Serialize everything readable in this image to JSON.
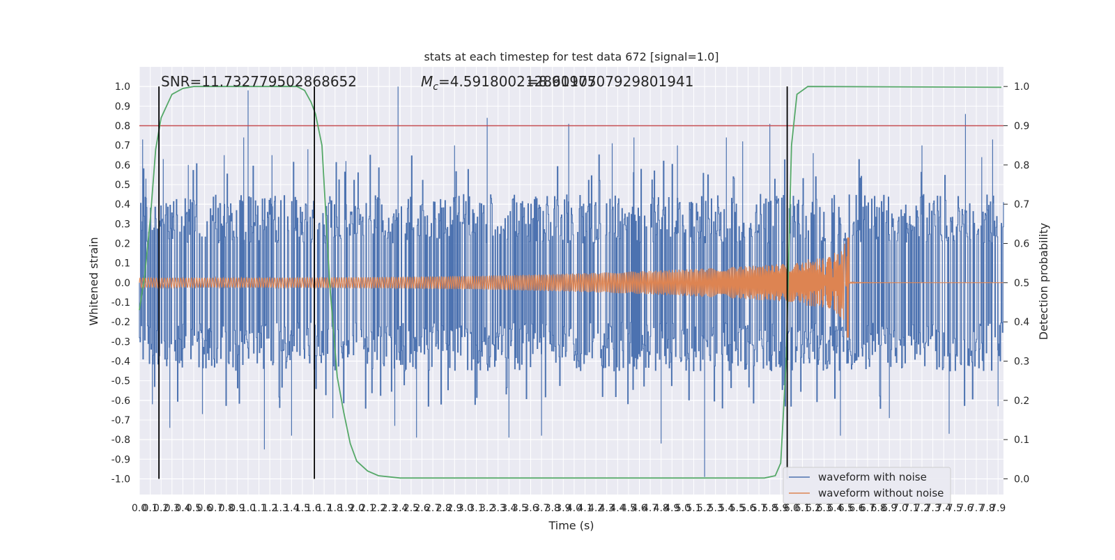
{
  "chart_data": {
    "type": "line",
    "title": "stats at each timestep for test data 672 [signal=1.0]",
    "xlabel": "Time (s)",
    "ylabel_left": "Whitened strain",
    "ylabel_right": "Detection probability",
    "xlim": [
      0.0,
      7.95
    ],
    "ylim_left": [
      -1.08,
      1.1
    ],
    "ylim_right": [
      -0.04,
      1.05
    ],
    "x_ticks": [
      "0.0",
      "0.1",
      "0.2",
      "0.3",
      "0.4",
      "0.5",
      "0.6",
      "0.7",
      "0.8",
      "0.9",
      "1.0",
      "1.1",
      "1.2",
      "1.3",
      "1.4",
      "1.5",
      "1.6",
      "1.7",
      "1.8",
      "1.9",
      "2.0",
      "2.1",
      "2.2",
      "2.3",
      "2.4",
      "2.5",
      "2.6",
      "2.7",
      "2.8",
      "2.9",
      "3.0",
      "3.1",
      "3.2",
      "3.3",
      "3.4",
      "3.5",
      "3.6",
      "3.7",
      "3.8",
      "3.9",
      "4.0",
      "4.1",
      "4.2",
      "4.3",
      "4.4",
      "4.5",
      "4.6",
      "4.7",
      "4.8",
      "4.9",
      "5.0",
      "5.1",
      "5.2",
      "5.3",
      "5.4",
      "5.5",
      "5.6",
      "5.7",
      "5.8",
      "5.9",
      "6.0",
      "6.1",
      "6.2",
      "6.3",
      "6.4",
      "6.5",
      "6.6",
      "6.7",
      "6.8",
      "6.9",
      "7.0",
      "7.1",
      "7.2",
      "7.3",
      "7.4",
      "7.5",
      "7.6",
      "7.7",
      "7.8",
      "7.9"
    ],
    "y_ticks_left": [
      "-1.0",
      "-0.9",
      "-0.8",
      "-0.7",
      "-0.6",
      "-0.5",
      "-0.4",
      "-0.3",
      "-0.2",
      "-0.1",
      "0.0",
      "0.1",
      "0.2",
      "0.3",
      "0.4",
      "0.5",
      "0.6",
      "0.7",
      "0.8",
      "0.9",
      "1.0"
    ],
    "y_ticks_right": [
      "0.0",
      "0.1",
      "0.2",
      "0.3",
      "0.4",
      "0.5",
      "0.6",
      "0.7",
      "0.8",
      "0.9",
      "1.0"
    ],
    "annotations": {
      "snr": "SNR=11.732779502868652",
      "mc_symbol": "M",
      "mc_sub": "c",
      "mc_value": "=4.591800212860107",
      "overlap": "=8.9197507929801941"
    },
    "threshold_line": {
      "y_right": 0.9,
      "color": "#c44e52"
    },
    "vertical_lines_x": [
      0.18,
      1.61,
      5.96
    ],
    "series": [
      {
        "name": "waveform with noise",
        "color": "#4c72b0",
        "envelope_typical": 0.45,
        "peak_points": [
          [
            0.03,
            0.73
          ],
          [
            0.06,
            0.53
          ],
          [
            0.12,
            -0.62
          ],
          [
            0.22,
            0.63
          ],
          [
            0.28,
            -0.74
          ],
          [
            0.45,
            0.6
          ],
          [
            0.58,
            -0.67
          ],
          [
            0.78,
            0.65
          ],
          [
            0.96,
            0.74
          ],
          [
            1.0,
            0.98
          ],
          [
            1.15,
            -0.85
          ],
          [
            1.22,
            0.65
          ],
          [
            1.4,
            -0.78
          ],
          [
            1.55,
            0.68
          ],
          [
            1.78,
            -0.69
          ],
          [
            1.9,
            0.62
          ],
          [
            2.35,
            -0.73
          ],
          [
            2.38,
            1.0
          ],
          [
            2.55,
            -0.79
          ],
          [
            2.9,
            0.7
          ],
          [
            3.2,
            0.84
          ],
          [
            3.4,
            -0.79
          ],
          [
            3.7,
            -0.78
          ],
          [
            3.95,
            0.81
          ],
          [
            4.35,
            0.71
          ],
          [
            4.55,
            0.74
          ],
          [
            4.8,
            -0.82
          ],
          [
            4.95,
            0.7
          ],
          [
            5.2,
            -0.99
          ],
          [
            5.4,
            0.74
          ],
          [
            5.55,
            0.72
          ],
          [
            5.8,
            0.81
          ],
          [
            6.2,
            0.66
          ],
          [
            6.45,
            -0.78
          ],
          [
            6.9,
            -0.69
          ],
          [
            7.2,
            0.7
          ],
          [
            7.45,
            -0.77
          ],
          [
            7.6,
            0.86
          ],
          [
            7.75,
            0.64
          ],
          [
            7.85,
            0.73
          ],
          [
            7.9,
            -0.63
          ]
        ]
      },
      {
        "name": "waveform without noise",
        "color": "#dd8452",
        "merger_time": 6.53,
        "amplitude_start": 0.025,
        "amplitude_near_merger": 0.12,
        "amplitude_peak": 0.23,
        "amplitude_peak_negative": -0.28
      },
      {
        "name": "detection probability",
        "color": "#55a868",
        "axis": "right",
        "points": [
          [
            0.0,
            0.43
          ],
          [
            0.05,
            0.52
          ],
          [
            0.1,
            0.66
          ],
          [
            0.15,
            0.84
          ],
          [
            0.2,
            0.92
          ],
          [
            0.25,
            0.95
          ],
          [
            0.3,
            0.98
          ],
          [
            0.4,
            0.995
          ],
          [
            0.5,
            1.0
          ],
          [
            1.45,
            1.0
          ],
          [
            1.52,
            0.99
          ],
          [
            1.58,
            0.96
          ],
          [
            1.62,
            0.93
          ],
          [
            1.68,
            0.85
          ],
          [
            1.75,
            0.5
          ],
          [
            1.82,
            0.26
          ],
          [
            1.88,
            0.17
          ],
          [
            1.94,
            0.09
          ],
          [
            2.0,
            0.045
          ],
          [
            2.1,
            0.02
          ],
          [
            2.2,
            0.008
          ],
          [
            2.4,
            0.002
          ],
          [
            5.75,
            0.002
          ],
          [
            5.85,
            0.008
          ],
          [
            5.9,
            0.04
          ],
          [
            5.95,
            0.3
          ],
          [
            6.0,
            0.85
          ],
          [
            6.05,
            0.98
          ],
          [
            6.15,
            1.0
          ],
          [
            7.93,
            0.998
          ]
        ]
      }
    ],
    "legend": {
      "placement": "lower-right",
      "entries": [
        "waveform with noise",
        "waveform without noise"
      ]
    },
    "grid": true
  }
}
